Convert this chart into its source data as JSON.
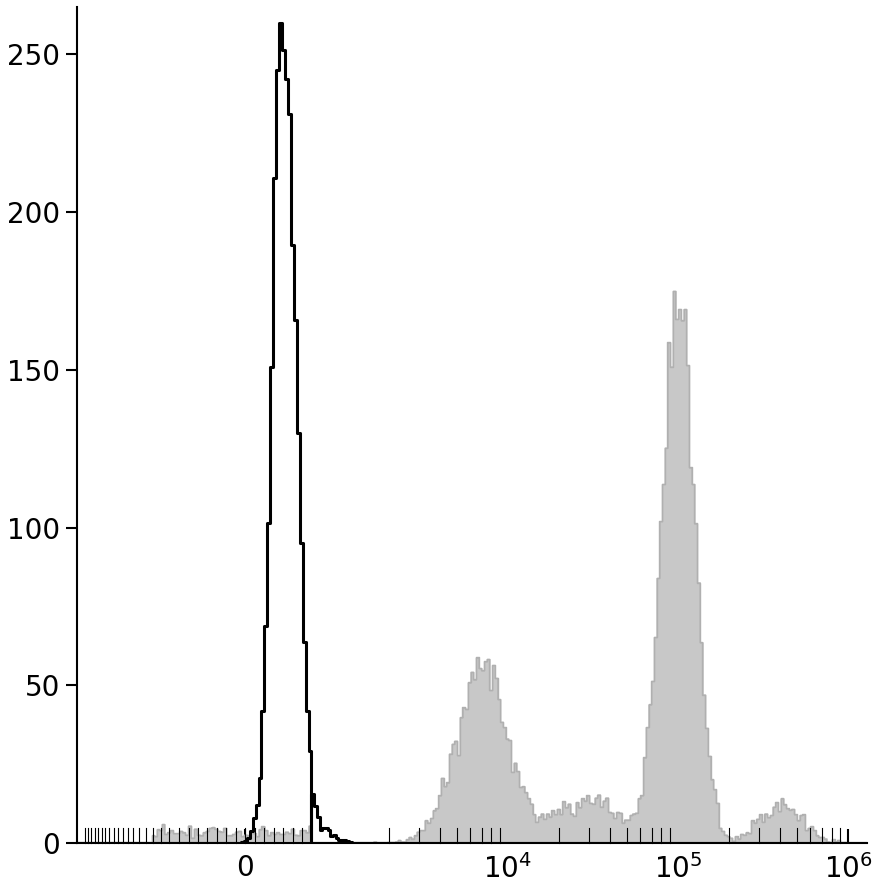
{
  "title": "",
  "ylim": [
    0,
    265
  ],
  "yticks": [
    0,
    50,
    100,
    150,
    200,
    250
  ],
  "background_color": "#ffffff",
  "black_hist_color": "#000000",
  "gray_hist_color": "#c8c8c8",
  "gray_hist_edge_color": "#b0b0b0",
  "black_hist_linewidth": 2.2,
  "gray_hist_linewidth": 1.0,
  "figsize": [
    8.82,
    8.91
  ],
  "dpi": 100,
  "linthresh": 700,
  "linscale": 0.35
}
